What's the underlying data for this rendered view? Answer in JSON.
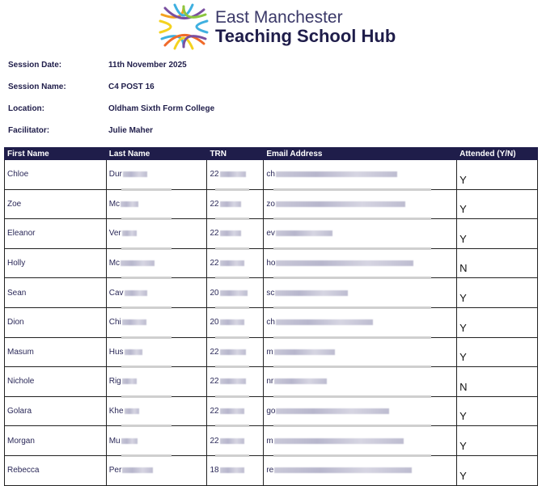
{
  "header": {
    "logo_line1": "East Manchester",
    "logo_line2": "Teaching School Hub"
  },
  "session": [
    {
      "label": "Session Date:",
      "value": "11th November 2025"
    },
    {
      "label": "Session Name:",
      "value": "C4 POST 16"
    },
    {
      "label": "Location:",
      "value": "Oldham Sixth Form College"
    },
    {
      "label": "Facilitator:",
      "value": "Julie Maher"
    }
  ],
  "table": {
    "columns": [
      "First Name",
      "Last Name",
      "TRN",
      "Email Address",
      "Attended (Y/N)"
    ],
    "rows": [
      {
        "first": "Chloe",
        "last": "Dur",
        "trn": "22",
        "email": "ch",
        "attended": "Y"
      },
      {
        "first": "Zoe",
        "last": "Mc",
        "trn": "22",
        "email": "zo",
        "attended": "Y"
      },
      {
        "first": "Eleanor",
        "last": "Ver",
        "trn": "22",
        "email": "ev",
        "attended": "Y"
      },
      {
        "first": "Holly",
        "last": "Mc",
        "trn": "22",
        "email": "ho",
        "attended": "N"
      },
      {
        "first": "Sean",
        "last": "Cav",
        "trn": "20",
        "email": "sc",
        "attended": "Y"
      },
      {
        "first": "Dion",
        "last": "Chi",
        "trn": "20",
        "email": "ch",
        "attended": "Y"
      },
      {
        "first": "Masum",
        "last": "Hus",
        "trn": "22",
        "email": "m",
        "attended": "Y"
      },
      {
        "first": "Nichole",
        "last": "Rig",
        "trn": "22",
        "email": "nr",
        "attended": "N"
      },
      {
        "first": "Golara",
        "last": "Khe",
        "trn": "22",
        "email": "go",
        "attended": "Y"
      },
      {
        "first": "Morgan",
        "last": "Mu",
        "trn": "22",
        "email": "m",
        "attended": "Y"
      },
      {
        "first": "Rebecca",
        "last": "Per",
        "trn": "18",
        "email": "re",
        "attended": "Y"
      }
    ]
  }
}
